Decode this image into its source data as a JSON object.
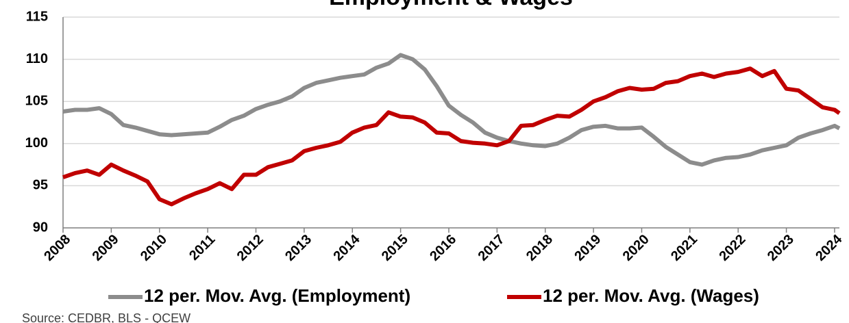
{
  "chart_data": {
    "type": "line",
    "title": "Employment & Wages",
    "source": "Source: CEDBR, BLS - QCEW",
    "x": [
      2008,
      2008.25,
      2008.5,
      2008.75,
      2009,
      2009.25,
      2009.5,
      2009.75,
      2010,
      2010.25,
      2010.5,
      2010.75,
      2011,
      2011.25,
      2011.5,
      2011.75,
      2012,
      2012.25,
      2012.5,
      2012.75,
      2013,
      2013.25,
      2013.5,
      2013.75,
      2014,
      2014.25,
      2014.5,
      2014.75,
      2015,
      2015.25,
      2015.5,
      2015.75,
      2016,
      2016.25,
      2016.5,
      2016.75,
      2017,
      2017.25,
      2017.5,
      2017.75,
      2018,
      2018.25,
      2018.5,
      2018.75,
      2019,
      2019.25,
      2019.5,
      2019.75,
      2020,
      2020.25,
      2020.5,
      2020.75,
      2021,
      2021.25,
      2021.5,
      2021.75,
      2022,
      2022.25,
      2022.5,
      2022.75,
      2023,
      2023.25,
      2023.5,
      2023.75,
      2024,
      2024.1
    ],
    "series": [
      {
        "name": "12 per. Mov. Avg. (Employment)",
        "color": "#8c8c8c",
        "values": [
          103.8,
          104.0,
          104.0,
          104.2,
          103.5,
          102.2,
          101.9,
          101.5,
          101.1,
          101.0,
          101.1,
          101.2,
          101.3,
          102.0,
          102.8,
          103.3,
          104.1,
          104.6,
          105.0,
          105.6,
          106.6,
          107.2,
          107.5,
          107.8,
          108.0,
          108.2,
          109.0,
          109.5,
          110.5,
          110.0,
          108.8,
          106.8,
          104.5,
          103.4,
          102.5,
          101.3,
          100.7,
          100.3,
          100.0,
          99.8,
          99.7,
          100.0,
          100.7,
          101.6,
          102.0,
          102.1,
          101.8,
          101.8,
          101.9,
          100.8,
          99.6,
          98.7,
          97.8,
          97.5,
          98.0,
          98.3,
          98.4,
          98.7,
          99.2,
          99.5,
          99.8,
          100.7,
          101.2,
          101.6,
          102.1,
          101.8
        ]
      },
      {
        "name": "12 per. Mov. Avg. (Wages)",
        "color": "#c00000",
        "values": [
          96.0,
          96.5,
          96.8,
          96.3,
          97.5,
          96.8,
          96.2,
          95.5,
          93.4,
          92.8,
          93.5,
          94.1,
          94.6,
          95.3,
          94.6,
          96.3,
          96.3,
          97.2,
          97.6,
          98.0,
          99.1,
          99.5,
          99.8,
          100.2,
          101.3,
          101.9,
          102.2,
          103.7,
          103.2,
          103.1,
          102.5,
          101.3,
          101.2,
          100.3,
          100.1,
          100.0,
          99.8,
          100.3,
          102.1,
          102.2,
          102.8,
          103.3,
          103.2,
          104.0,
          105.0,
          105.5,
          106.2,
          106.6,
          106.4,
          106.5,
          107.2,
          107.4,
          108.0,
          108.3,
          107.9,
          108.3,
          108.5,
          108.9,
          108.0,
          108.6,
          106.5,
          106.3,
          105.3,
          104.3,
          104.0,
          103.6
        ]
      }
    ],
    "xlim": [
      2008,
      2024.1
    ],
    "xticks": [
      2008,
      2009,
      2010,
      2011,
      2012,
      2013,
      2014,
      2015,
      2016,
      2017,
      2018,
      2019,
      2020,
      2021,
      2022,
      2023,
      2024
    ],
    "ylim": [
      90,
      115
    ],
    "yticks": [
      90,
      95,
      100,
      105,
      110,
      115
    ],
    "grid": true,
    "legend": "bottom"
  }
}
